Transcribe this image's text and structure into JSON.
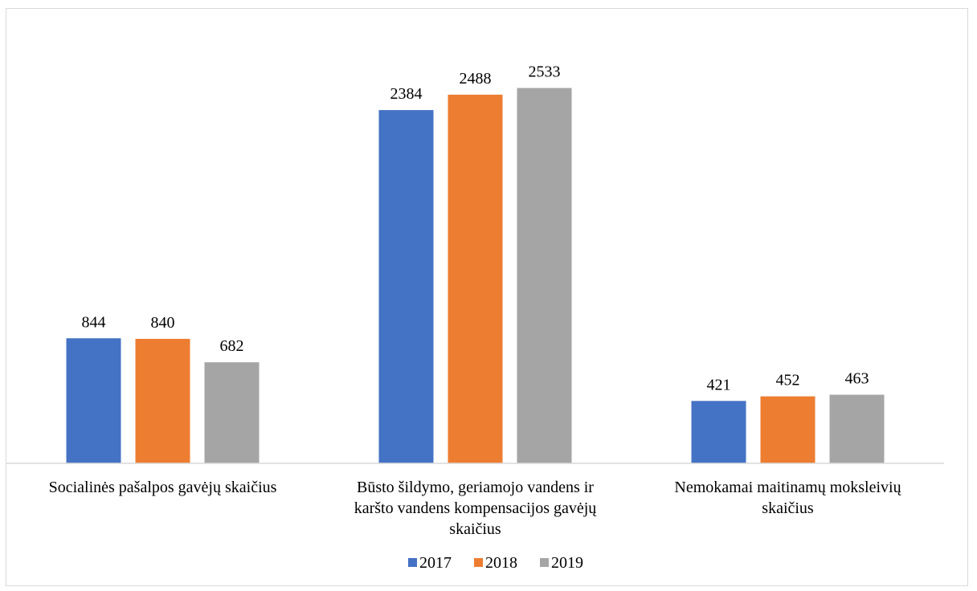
{
  "chart_data": {
    "type": "bar",
    "categories": [
      [
        "Socialinės pašalpos gavėjų skaičius"
      ],
      [
        "Būsto šildymo, geriamojo vandens ir",
        "karšto vandens kompensacijos gavėjų",
        "skaičius"
      ],
      [
        "Nemokamai maitinamų moksleivių",
        "skaičius"
      ]
    ],
    "series": [
      {
        "name": "2017",
        "color": "#4472C4",
        "values": [
          844,
          2384,
          421
        ]
      },
      {
        "name": "2018",
        "color": "#ED7D31",
        "values": [
          840,
          2488,
          452
        ]
      },
      {
        "name": "2019",
        "color": "#A5A5A5",
        "values": [
          682,
          2533,
          463
        ]
      }
    ],
    "title": "",
    "xlabel": "",
    "ylabel": "",
    "ylim": [
      0,
      2650
    ],
    "grid": false,
    "legend": "bottom",
    "data_labels": true
  }
}
